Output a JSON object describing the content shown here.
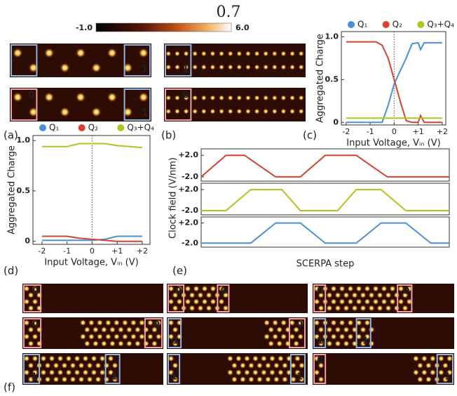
{
  "figure": {
    "title": "0.7",
    "colorbar": {
      "ticks": [
        {
          "value": -1,
          "label": "-1.0"
        },
        {
          "value": 6,
          "label": "6.0"
        }
      ]
    },
    "panel_labels": [
      "(a)",
      "(b)",
      "(c)",
      "(d)",
      "(e)",
      "(f)"
    ],
    "images": [
      {
        "boxes": [
          {
            "color": "#8fb4e0"
          },
          {
            "label": "1",
            "color": "#8fb4e0"
          }
        ]
      },
      {
        "boxes": [
          {
            "label": "1",
            "color": "#8fb4e0"
          }
        ]
      },
      {
        "boxes": [
          {
            "label": "0",
            "color": "#f0a0a8"
          },
          {
            "label": "1",
            "color": "#8fb4e0"
          }
        ]
      },
      {
        "boxes": [
          {
            "label": "0",
            "color": "#f0a0a8"
          }
        ]
      },
      {
        "boxes": [
          {
            "label": "0",
            "color": "#f0a0a8"
          }
        ]
      },
      {
        "boxes": [
          {
            "label": "0",
            "color": "#f0a0a8"
          },
          {
            "label": "0",
            "color": "#f0a0a8"
          }
        ]
      },
      {
        "boxes": [
          {
            "label": "0",
            "color": "#f0a0a8"
          },
          {
            "label": "0",
            "color": "#f0a0a8"
          }
        ]
      },
      {
        "boxes": [
          {
            "label": "0",
            "color": "#f0a0a8"
          },
          {
            "label": "0",
            "color": "#f0a0a8"
          }
        ]
      },
      {
        "boxes": [
          {
            "label": "1",
            "color": "#8fb4e0"
          },
          {
            "label": "0",
            "color": "#f0a0a8"
          }
        ]
      },
      {
        "boxes": [
          {
            "label": "1",
            "color": "#8fb4e0"
          },
          {
            "label": "1",
            "color": "#8fb4e0"
          }
        ]
      },
      {
        "boxes": [
          {
            "label": "1",
            "color": "#8fb4e0"
          },
          {
            "label": "1",
            "color": "#8fb4e0"
          }
        ]
      },
      {
        "boxes": [
          {
            "label": "1",
            "color": "#8fb4e0"
          },
          {
            "label": "1",
            "color": "#8fb4e0"
          }
        ]
      },
      {
        "boxes": [
          {
            "label": "0",
            "color": "#f0a0a8"
          },
          {
            "label": "1",
            "color": "#8fb4e0"
          }
        ]
      }
    ]
  },
  "chart_data": [
    {
      "type": "line",
      "xlabel": "Input Voltage, Vᵢₙ (V)",
      "ylabel": "Aggregated Charge",
      "legend": "top",
      "x": [
        -2,
        -1.5,
        -1,
        -0.75,
        -0.5,
        -0.25,
        0,
        0.25,
        0.5,
        0.75,
        1,
        1.1,
        1.25,
        1.5,
        2
      ],
      "series": [
        {
          "name": "Q₁",
          "color": "#4a90d9",
          "values": [
            0,
            0,
            0,
            0,
            0,
            0.2,
            0.45,
            0.6,
            0.75,
            0.92,
            0.93,
            0.85,
            0.93,
            0.93,
            0.93
          ]
        },
        {
          "name": "Q₂",
          "color": "#d9402e",
          "values": [
            0.94,
            0.94,
            0.94,
            0.94,
            0.9,
            0.75,
            0.5,
            0.25,
            0.02,
            0,
            0,
            0.08,
            0,
            0,
            0
          ]
        },
        {
          "name": "Q₃+Q₄",
          "color": "#a8c820",
          "values": [
            0.05,
            0.05,
            0.05,
            0.05,
            0.05,
            0.05,
            0.05,
            0.05,
            0.05,
            0.05,
            0.05,
            0.05,
            0.05,
            0.05,
            0.05
          ]
        }
      ],
      "xlim": [
        -2.2,
        2.15
      ],
      "ylim": [
        -0.03,
        1.06
      ],
      "xticks": [
        -2,
        -1,
        0,
        {
          "value": 1,
          "label": "+1"
        },
        {
          "value": 2,
          "label": "+2"
        }
      ],
      "yticks": [
        0,
        0.5,
        {
          "value": 1,
          "label": "1.0"
        }
      ]
    },
    {
      "type": "line",
      "xlabel": "Input Voltage, Vᵢₙ (V)",
      "ylabel": "Aggregated Charge",
      "legend": "top",
      "x": [
        -2,
        -1.5,
        -1,
        -0.5,
        0,
        0.5,
        1,
        1.5,
        2
      ],
      "series": [
        {
          "name": "Q₁",
          "color": "#4a90d9",
          "values": [
            0.01,
            0.01,
            0.01,
            0.01,
            0.01,
            0.02,
            0.05,
            0.05,
            0.05
          ]
        },
        {
          "name": "Q₂",
          "color": "#d9402e",
          "values": [
            0.05,
            0.05,
            0.05,
            0.03,
            0.02,
            0.01,
            0,
            0,
            0
          ]
        },
        {
          "name": "Q₃+Q₄",
          "color": "#a8c820",
          "values": [
            0.94,
            0.94,
            0.94,
            0.97,
            0.97,
            0.97,
            0.95,
            0.94,
            0.93
          ]
        }
      ],
      "xlim": [
        -2.36,
        2.31
      ],
      "ylim": [
        -0.03,
        1.05
      ],
      "xticks": [
        -2,
        -1,
        0,
        {
          "value": 1,
          "label": "+1"
        },
        {
          "value": 2,
          "label": "+2"
        }
      ],
      "yticks": [
        0,
        0.5,
        {
          "value": 1,
          "label": "1.0"
        }
      ]
    },
    {
      "type": "line",
      "ylabel": "Clock field (V/nm)",
      "x": [
        0,
        2,
        3.5,
        6,
        8,
        10,
        12.5,
        15,
        20
      ],
      "series": [
        {
          "color": "#d9402e",
          "values": [
            -2,
            2,
            2,
            -2,
            -2,
            2,
            2,
            -2,
            -2
          ]
        }
      ],
      "xlim": [
        0,
        20
      ],
      "ylim": [
        -2.8,
        3.2
      ],
      "yticks": [
        {
          "value": 2,
          "label": "+2.0"
        },
        {
          "value": -2,
          "label": "-2.0"
        }
      ]
    },
    {
      "type": "line",
      "x": [
        0,
        2,
        4,
        6.5,
        8,
        11,
        12.5,
        14.5,
        16.5,
        20
      ],
      "series": [
        {
          "color": "#a8c820",
          "values": [
            -2,
            -2,
            2,
            2,
            -2,
            -2,
            2,
            2,
            -2,
            -2
          ]
        }
      ],
      "xlim": [
        0,
        20
      ],
      "ylim": [
        -2.8,
        3.2
      ],
      "yticks": [
        {
          "value": 2,
          "label": "+2.0"
        },
        {
          "value": -2,
          "label": "-2.0"
        }
      ]
    },
    {
      "type": "line",
      "xlabel": "SCERPA step",
      "x": [
        0,
        4,
        6,
        8,
        10,
        12.5,
        14.5,
        16.5,
        18.5,
        20
      ],
      "series": [
        {
          "color": "#4a90d9",
          "values": [
            -2,
            -2,
            2,
            2,
            -2,
            -2,
            2,
            2,
            -2,
            -2
          ]
        }
      ],
      "xlim": [
        0,
        20
      ],
      "ylim": [
        -2.8,
        3.2
      ],
      "yticks": [
        {
          "value": 2,
          "label": "+2.0"
        },
        {
          "value": -2,
          "label": "-2.0"
        }
      ]
    }
  ]
}
